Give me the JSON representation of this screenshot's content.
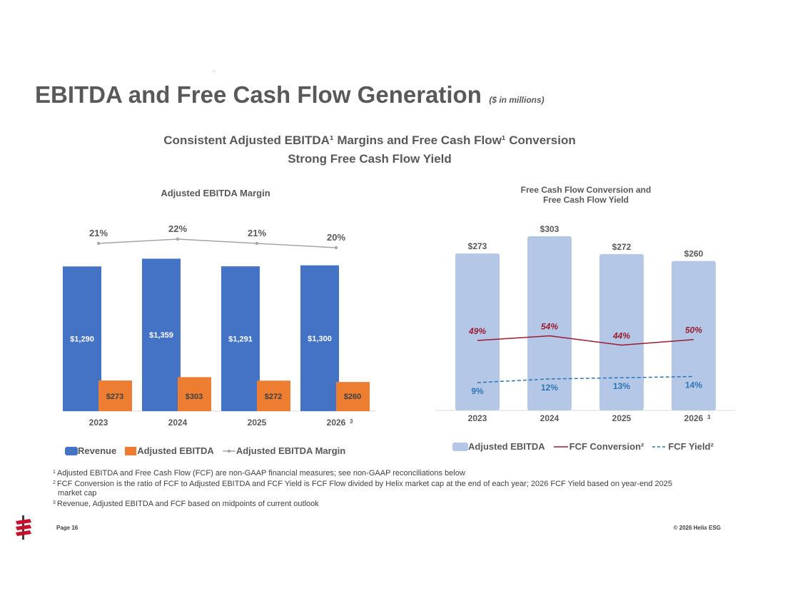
{
  "title": {
    "main": "EBITDA and Free Cash Flow Generation",
    "sub": "($ in millions)"
  },
  "subheading": {
    "line1": "Consistent Adjusted EBITDA¹ Margins and Free Cash Flow¹ Conversion",
    "line2": "Strong Free Cash Flow Yield"
  },
  "colors": {
    "revenue": "#4472C4",
    "ebitda": "#ED7D31",
    "margin": "#A5A5A5",
    "ebitda_light": "#B4C7E7",
    "fcf_conversion": "#9B1B30",
    "fcf_yield": "#2E75B6"
  },
  "chart_data": [
    {
      "type": "bar",
      "title": "Adjusted EBITDA Margin",
      "categories": [
        "2023",
        "2024",
        "2025",
        "2026"
      ],
      "category_notes": [
        "",
        "",
        "",
        "3"
      ],
      "series": [
        {
          "name": "Revenue",
          "values": [
            1290,
            1359,
            1291,
            1300
          ],
          "labels": [
            "$1,290",
            "$1,359",
            "$1,291",
            "$1,300"
          ]
        },
        {
          "name": "Adjusted EBITDA",
          "values": [
            273,
            303,
            272,
            260
          ],
          "labels": [
            "$273",
            "$303",
            "$272",
            "$260"
          ]
        },
        {
          "name": "Adjusted EBITDA Margin",
          "kind": "line",
          "values": [
            21,
            22,
            21,
            20
          ],
          "labels": [
            "21%",
            "22%",
            "21%",
            "20%"
          ]
        }
      ],
      "ylim": [
        0,
        1400
      ],
      "legend": [
        "Revenue",
        "Adjusted EBITDA",
        "Adjusted EBITDA Margin"
      ]
    },
    {
      "type": "bar",
      "title_line1": "Free Cash Flow Conversion and",
      "title_line2": "Free Cash Flow Yield",
      "categories": [
        "2023",
        "2024",
        "2025",
        "2026"
      ],
      "category_notes": [
        "",
        "",
        "",
        "3"
      ],
      "series": [
        {
          "name": "Adjusted EBITDA",
          "values": [
            273,
            303,
            272,
            260
          ],
          "labels": [
            "$273",
            "$303",
            "$272",
            "$260"
          ]
        },
        {
          "name": "FCF Conversion²",
          "kind": "line",
          "values": [
            49,
            54,
            44,
            50
          ],
          "labels": [
            "49%",
            "54%",
            "44%",
            "50%"
          ]
        },
        {
          "name": "FCF Yield²",
          "kind": "line",
          "style": "dashed",
          "values": [
            9,
            12,
            13,
            14
          ],
          "labels": [
            "9%",
            "12%",
            "13%",
            "14%"
          ]
        }
      ],
      "ylim": [
        0,
        303
      ],
      "legend": [
        "Adjusted EBITDA",
        "FCF Conversion²",
        "FCF Yield²"
      ]
    }
  ],
  "footnotes": {
    "n1": "Adjusted EBITDA and Free Cash Flow (FCF) are non-GAAP financial measures; see non-GAAP reconciliations below",
    "n2a": "FCF Conversion is the ratio of FCF to Adjusted EBITDA and FCF Yield is FCF Flow divided by Helix market cap at the end of each year; 2026 FCF Yield based on year-end 2025",
    "n2b": "market cap",
    "n3": "Revenue, Adjusted EBITDA and FCF based on midpoints of current outlook"
  },
  "footer": {
    "page": "Page 16",
    "copyright": "© 2026 Helix ESG"
  }
}
